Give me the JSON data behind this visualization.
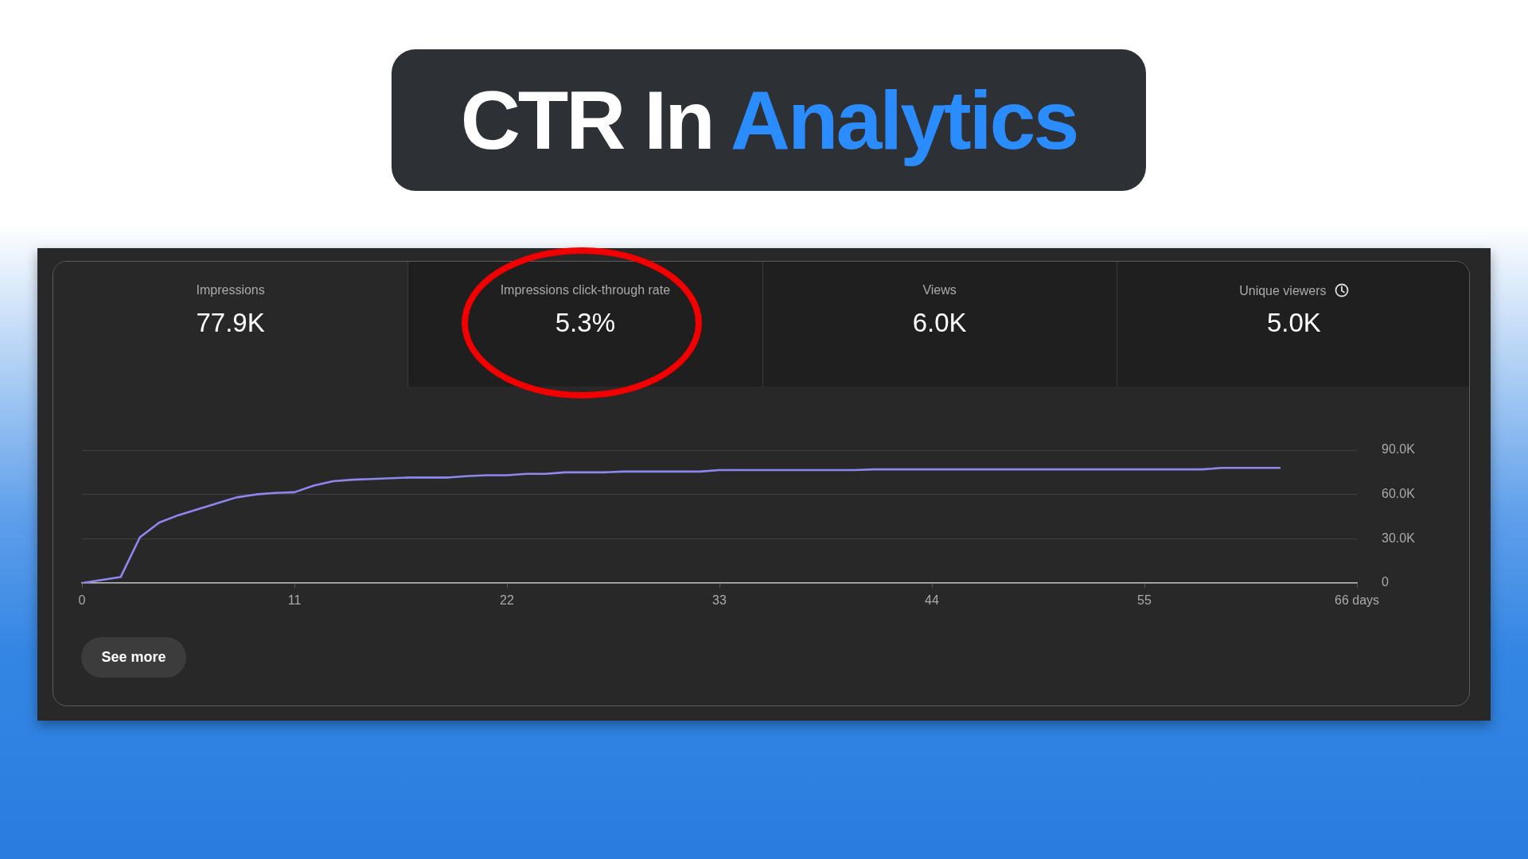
{
  "chart_data": {
    "type": "line",
    "title": "CTR In Analytics",
    "annotations": [
      "Impressions",
      "77.9K",
      "Impressions click-through rate",
      "5.3%",
      "Views",
      "6.0K",
      "Unique viewers",
      "5.0K",
      "See more"
    ],
    "x": [
      0,
      1,
      2,
      3,
      4,
      5,
      6,
      7,
      8,
      9,
      10,
      11,
      12,
      13,
      14,
      15,
      16,
      17,
      18,
      19,
      20,
      21,
      22,
      23,
      24,
      25,
      26,
      27,
      28,
      29,
      30,
      31,
      32,
      33,
      34,
      35,
      36,
      37,
      38,
      39,
      40,
      41,
      42,
      43,
      44,
      45,
      46,
      47,
      48,
      49,
      50,
      51,
      52,
      53,
      54,
      55,
      56,
      57,
      58,
      59,
      60,
      61,
      62
    ],
    "series": [
      {
        "color": "#8d87ef",
        "values": [
          0,
          2000,
          4000,
          31000,
          41000,
          46000,
          50000,
          54000,
          58000,
          60000,
          61000,
          61500,
          66000,
          69000,
          70000,
          70500,
          71000,
          71500,
          71500,
          71500,
          72500,
          73000,
          73000,
          74000,
          74000,
          75000,
          75000,
          75000,
          75500,
          75500,
          75500,
          75500,
          75500,
          76500,
          76500,
          76500,
          76500,
          76500,
          76500,
          76500,
          76500,
          77000,
          77000,
          77000,
          77000,
          77000,
          77000,
          77000,
          77000,
          77000,
          77000,
          77000,
          77000,
          77000,
          77000,
          77000,
          77000,
          77000,
          77000,
          78000,
          78000,
          78000,
          78000
        ]
      }
    ],
    "xlim": [
      0,
      66
    ],
    "xticks": [
      0,
      11,
      22,
      33,
      44,
      55,
      {
        "value": 66,
        "label": "66 days"
      }
    ],
    "ylim": [
      0,
      90000
    ],
    "yticks": [
      0,
      {
        "value": 30000,
        "label": "30.0K"
      },
      {
        "value": 60000,
        "label": "60.0K"
      },
      {
        "value": 90000,
        "label": "90.0K"
      }
    ],
    "grid": "y",
    "marker": "none",
    "line_style": "solid"
  }
}
